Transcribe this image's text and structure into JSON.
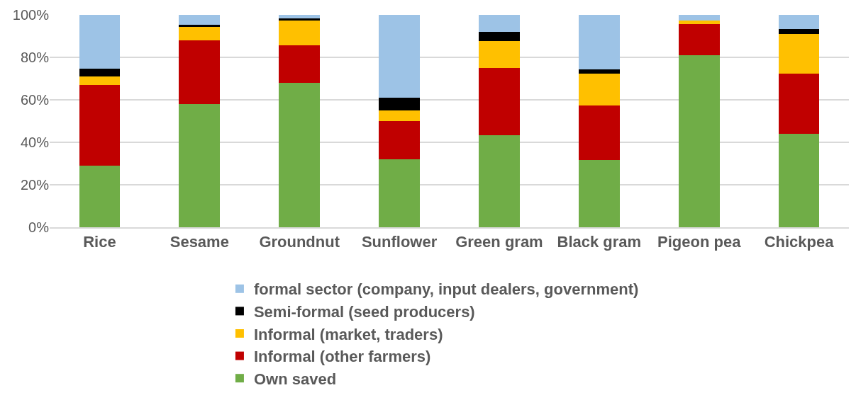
{
  "chart_data": {
    "type": "bar",
    "stacked": true,
    "categories": [
      "Rice",
      "Sesame",
      "Groundnut",
      "Sunflower",
      "Green gram",
      "Black gram",
      "Pigeon pea",
      "Chickpea"
    ],
    "series": [
      {
        "name": "Own saved",
        "color": "#70ad47",
        "values": [
          29,
          58,
          68,
          32,
          43.3,
          31.8,
          81,
          44
        ]
      },
      {
        "name": "Informal (other farmers)",
        "color": "#c00000",
        "values": [
          38,
          30,
          17.7,
          18,
          31.7,
          25.7,
          14.8,
          28.5
        ]
      },
      {
        "name": "Informal (market, traders)",
        "color": "#ffc000",
        "values": [
          4,
          6.5,
          11.5,
          5,
          12.6,
          14.7,
          1.4,
          18.5
        ]
      },
      {
        "name": "Semi-formal (seed producers)",
        "color": "#000000",
        "values": [
          3.7,
          0.7,
          1,
          6,
          4.4,
          2.2,
          0,
          2.3
        ]
      },
      {
        "name": "formal sector (company, input dealers, government)",
        "color": "#9dc3e6",
        "values": [
          25.3,
          4.8,
          1.8,
          39,
          8,
          25.6,
          2.8,
          6.7
        ]
      }
    ],
    "ylim": [
      0,
      100
    ],
    "yticks": [
      {
        "value": 0,
        "label": "0%"
      },
      {
        "value": 20,
        "label": "20%"
      },
      {
        "value": 40,
        "label": "40%"
      },
      {
        "value": 60,
        "label": "60%"
      },
      {
        "value": 80,
        "label": "80%"
      },
      {
        "value": 100,
        "label": "100%"
      }
    ],
    "grid": "y",
    "legend": "bottom"
  }
}
